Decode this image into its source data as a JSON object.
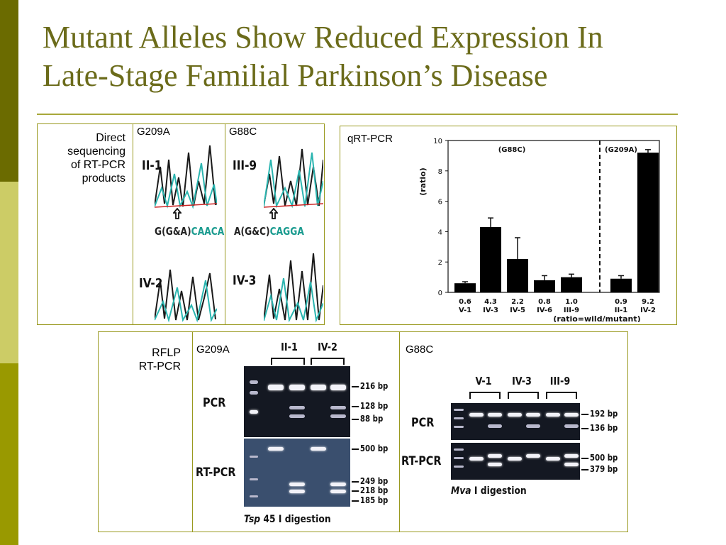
{
  "slide": {
    "title_line1": "Mutant Alleles Show Reduced Expression In",
    "title_line2": "Late-Stage Familial Parkinson’s Disease"
  },
  "sequencing": {
    "label_lines": [
      "Direct",
      "sequencing",
      "of RT-PCR",
      "products"
    ],
    "col1": {
      "header": "G209A",
      "top_trace_label": "II-1",
      "bottom_trace_label": "IV-2",
      "sequence_prefix": "G(G&A)",
      "sequence_suffix": "CAACA"
    },
    "col2": {
      "header": "G88C",
      "top_trace_label": "III-9",
      "bottom_trace_label": "IV-3",
      "sequence_prefix": "A(G&C)",
      "sequence_suffix": "CAGGA"
    }
  },
  "qrt": {
    "label": "qRT-PCR",
    "group1_label": "(G88C)",
    "group2_label": "(G209A)",
    "footnote": "(ratio=wild/mutant)"
  },
  "chart_data": {
    "type": "bar",
    "title": "",
    "xlabel": "",
    "ylabel": "(ratio)",
    "ylim": [
      0,
      10
    ],
    "yticks": [
      0,
      2,
      4,
      6,
      8,
      10
    ],
    "categories": [
      "V-1",
      "IV-3",
      "IV-5",
      "IV-6",
      "III-9",
      "II-1",
      "IV-2"
    ],
    "value_labels": [
      "0.6",
      "4.3",
      "2.2",
      "0.8",
      "1.0",
      "0.9",
      "9.2"
    ],
    "values": [
      0.6,
      4.3,
      2.2,
      0.8,
      1.0,
      0.9,
      9.2
    ],
    "errors": [
      0.1,
      0.6,
      1.4,
      0.3,
      0.2,
      0.2,
      0.2
    ],
    "groups": [
      {
        "name": "(G88C)",
        "categories": [
          "V-1",
          "IV-3",
          "IV-5",
          "IV-6",
          "III-9"
        ]
      },
      {
        "name": "(G209A)",
        "categories": [
          "II-1",
          "IV-2"
        ]
      }
    ],
    "grid": false,
    "color": "#000000"
  },
  "rflp": {
    "label_lines": [
      "RFLP",
      "RT-PCR"
    ],
    "g209a": {
      "header": "G209A",
      "lane_group1": "II-1",
      "lane_group2": "IV-2",
      "row1": "PCR",
      "row2": "RT-PCR",
      "bp_pcr": [
        "216 bp",
        "128 bp",
        "88 bp"
      ],
      "bp_rt": [
        "500 bp",
        "249 bp",
        "218 bp",
        "185 bp"
      ],
      "digest_enzyme": "Tsp",
      "digest_rest": " 45 I digestion"
    },
    "g88c": {
      "header": "G88C",
      "lane_group1": "V-1",
      "lane_group2": "IV-3",
      "lane_group3": "III-9",
      "row1": "PCR",
      "row2": "RT-PCR",
      "bp_pcr": [
        "192 bp",
        "136 bp"
      ],
      "bp_rt": [
        "500 bp",
        "379 bp"
      ],
      "digest_enzyme": "Mva",
      "digest_rest": " I digestion"
    }
  }
}
